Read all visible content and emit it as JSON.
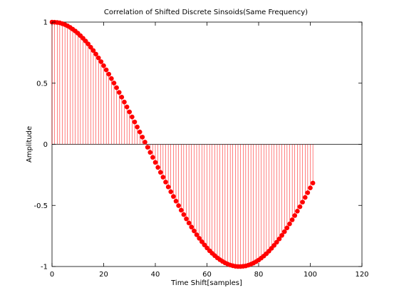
{
  "chart_data": {
    "type": "stem",
    "title": "Correlation of Shifted Discrete Sinsoids(Same Frequency)",
    "xlabel": "Time Shift[samples]",
    "ylabel": "Amplitude",
    "xlim": [
      0,
      120
    ],
    "ylim": [
      -1,
      1
    ],
    "xticks": [
      0,
      20,
      40,
      60,
      80,
      100,
      120
    ],
    "xtick_labels": [
      "0",
      "20",
      "40",
      "60",
      "80",
      "100",
      "120"
    ],
    "yticks": [
      -1,
      -0.5,
      0,
      0.5,
      1
    ],
    "ytick_labels": [
      "-1",
      "-0.5",
      "0",
      "0.5",
      "1"
    ],
    "grid": false,
    "color": "#ff0000",
    "baseline": 0,
    "series": [
      {
        "x": [
          0,
          1,
          2,
          3,
          4,
          5,
          6,
          7,
          8,
          9,
          10,
          11,
          12,
          13,
          14,
          15,
          16,
          17,
          18,
          19,
          20,
          21,
          22,
          23,
          24,
          25,
          26,
          27,
          28,
          29,
          30,
          31,
          32,
          33,
          34,
          35,
          36,
          37,
          38,
          39,
          40,
          41,
          42,
          43,
          44,
          45,
          46,
          47,
          48,
          49,
          50,
          51,
          52,
          53,
          54,
          55,
          56,
          57,
          58,
          59,
          60,
          61,
          62,
          63,
          64,
          65,
          66,
          67,
          68,
          69,
          70,
          71,
          72,
          73,
          74,
          75,
          76,
          77,
          78,
          79,
          80,
          81,
          82,
          83,
          84,
          85,
          86,
          87,
          88,
          89,
          90,
          91,
          92,
          93,
          94,
          95,
          96,
          97,
          98,
          99,
          100,
          101
        ],
        "y": [
          1.0,
          0.999,
          0.997,
          0.994,
          0.987,
          0.979,
          0.969,
          0.957,
          0.942,
          0.927,
          0.909,
          0.889,
          0.868,
          0.845,
          0.821,
          0.794,
          0.767,
          0.738,
          0.707,
          0.676,
          0.643,
          0.609,
          0.574,
          0.538,
          0.501,
          0.463,
          0.425,
          0.386,
          0.346,
          0.306,
          0.265,
          0.224,
          0.183,
          0.142,
          0.101,
          0.059,
          0.018,
          -0.024,
          -0.066,
          -0.107,
          -0.148,
          -0.189,
          -0.229,
          -0.269,
          -0.309,
          -0.349,
          -0.388,
          -0.427,
          -0.465,
          -0.502,
          -0.539,
          -0.575,
          -0.61,
          -0.644,
          -0.677,
          -0.709,
          -0.74,
          -0.769,
          -0.797,
          -0.823,
          -0.848,
          -0.871,
          -0.892,
          -0.911,
          -0.929,
          -0.944,
          -0.958,
          -0.97,
          -0.98,
          -0.988,
          -0.994,
          -0.998,
          -1.0,
          -1.0,
          -0.998,
          -0.995,
          -0.989,
          -0.981,
          -0.972,
          -0.96,
          -0.947,
          -0.931,
          -0.914,
          -0.895,
          -0.874,
          -0.851,
          -0.827,
          -0.801,
          -0.774,
          -0.745,
          -0.715,
          -0.684,
          -0.651,
          -0.618,
          -0.583,
          -0.547,
          -0.511,
          -0.473,
          -0.435,
          -0.396,
          -0.357,
          -0.317
        ]
      }
    ]
  }
}
